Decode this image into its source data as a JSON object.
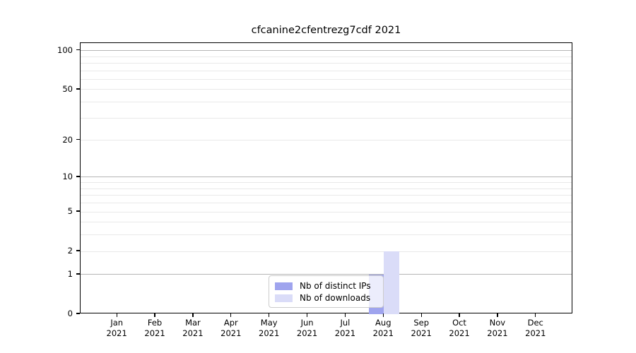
{
  "chart_data": {
    "type": "bar",
    "title": "cfcanine2cfentrezg7cdf 2021",
    "xlabel": "",
    "ylabel": "",
    "categories": [
      "Jan 2021",
      "Feb 2021",
      "Mar 2021",
      "Apr 2021",
      "May 2021",
      "Jun 2021",
      "Jul 2021",
      "Aug 2021",
      "Sep 2021",
      "Oct 2021",
      "Nov 2021",
      "Dec 2021"
    ],
    "series": [
      {
        "name": "Nb of distinct IPs",
        "color": "#9fa4ee",
        "values": [
          0,
          0,
          0,
          0,
          0,
          0,
          0,
          1,
          0,
          0,
          0,
          0
        ]
      },
      {
        "name": "Nb of downloads",
        "color": "#dadcf8",
        "values": [
          0,
          0,
          0,
          0,
          0,
          0,
          0,
          2,
          0,
          0,
          0,
          0
        ]
      }
    ],
    "y_axis": {
      "scale": "log1p",
      "ticks": [
        0,
        1,
        2,
        5,
        10,
        20,
        50,
        100
      ],
      "ylim": [
        0,
        113
      ]
    },
    "grid": {
      "major_values": [
        1,
        10,
        100
      ],
      "minor_values": [
        2,
        3,
        4,
        5,
        6,
        7,
        8,
        9,
        20,
        30,
        40,
        50,
        60,
        70,
        80,
        90
      ],
      "major_color": "#b5b5b5",
      "minor_color": "#e9e9e9"
    },
    "legend": {
      "position": "lower center",
      "entries": [
        "Nb of distinct IPs",
        "Nb of downloads"
      ]
    },
    "colors": {
      "spine": "#000000",
      "background": "#ffffff",
      "text": "#000000"
    }
  }
}
